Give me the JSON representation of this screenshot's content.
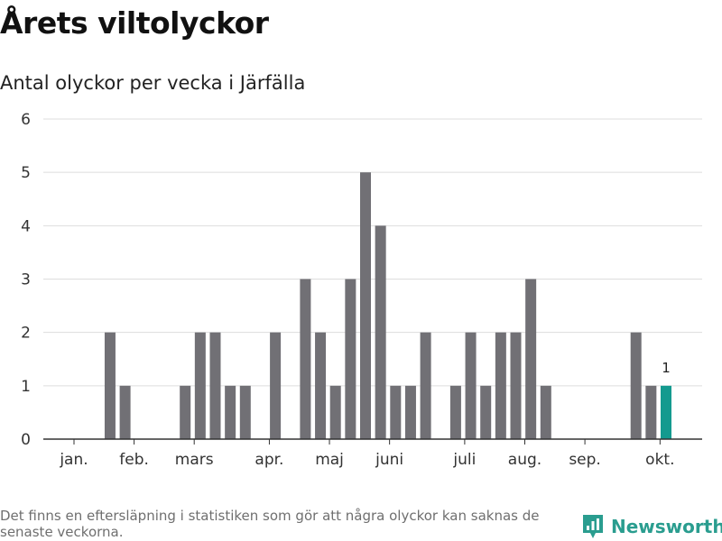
{
  "header": {
    "title": "Årets viltolyckor",
    "subtitle": "Antal olyckor per vecka i Järfälla"
  },
  "chart_data": {
    "type": "bar",
    "title": "Årets viltolyckor",
    "subtitle": "Antal olyckor per vecka i Järfälla",
    "xlabel": "",
    "ylabel": "",
    "ylim": [
      0,
      6
    ],
    "yticks": [
      0,
      1,
      2,
      3,
      4,
      5,
      6
    ],
    "grid": true,
    "weeks": [
      1,
      2,
      3,
      4,
      5,
      6,
      7,
      8,
      9,
      10,
      11,
      12,
      13,
      14,
      15,
      16,
      17,
      18,
      19,
      20,
      21,
      22,
      23,
      24,
      25,
      26,
      27,
      28,
      29,
      30,
      31,
      32,
      33,
      34,
      35,
      36,
      37,
      38,
      39,
      40,
      41
    ],
    "values": [
      0,
      0,
      0,
      2,
      1,
      0,
      0,
      0,
      1,
      2,
      2,
      1,
      1,
      0,
      2,
      0,
      3,
      2,
      1,
      3,
      5,
      4,
      1,
      1,
      2,
      0,
      1,
      2,
      1,
      2,
      2,
      3,
      1,
      0,
      0,
      0,
      0,
      0,
      2,
      1,
      1
    ],
    "highlight_week": 41,
    "highlight_label": "1",
    "month_ticks": [
      {
        "label": "jan.",
        "week": 1.6
      },
      {
        "label": "feb.",
        "week": 5.6
      },
      {
        "label": "mars",
        "week": 9.6
      },
      {
        "label": "apr.",
        "week": 14.6
      },
      {
        "label": "maj",
        "week": 18.6
      },
      {
        "label": "juni",
        "week": 22.6
      },
      {
        "label": "juli",
        "week": 27.6
      },
      {
        "label": "aug.",
        "week": 31.6
      },
      {
        "label": "sep.",
        "week": 35.6
      },
      {
        "label": "okt.",
        "week": 40.6
      }
    ],
    "colors": {
      "bar": "#717075",
      "highlight": "#149a8f",
      "grid": "#dddddd",
      "axis": "#333333"
    }
  },
  "footer": {
    "note": "Det finns en eftersläpning i statistiken som gör att några olyckor kan saknas de senaste veckorna.",
    "brand": "Newsworthy",
    "brand_color": "#2a9d8f"
  }
}
